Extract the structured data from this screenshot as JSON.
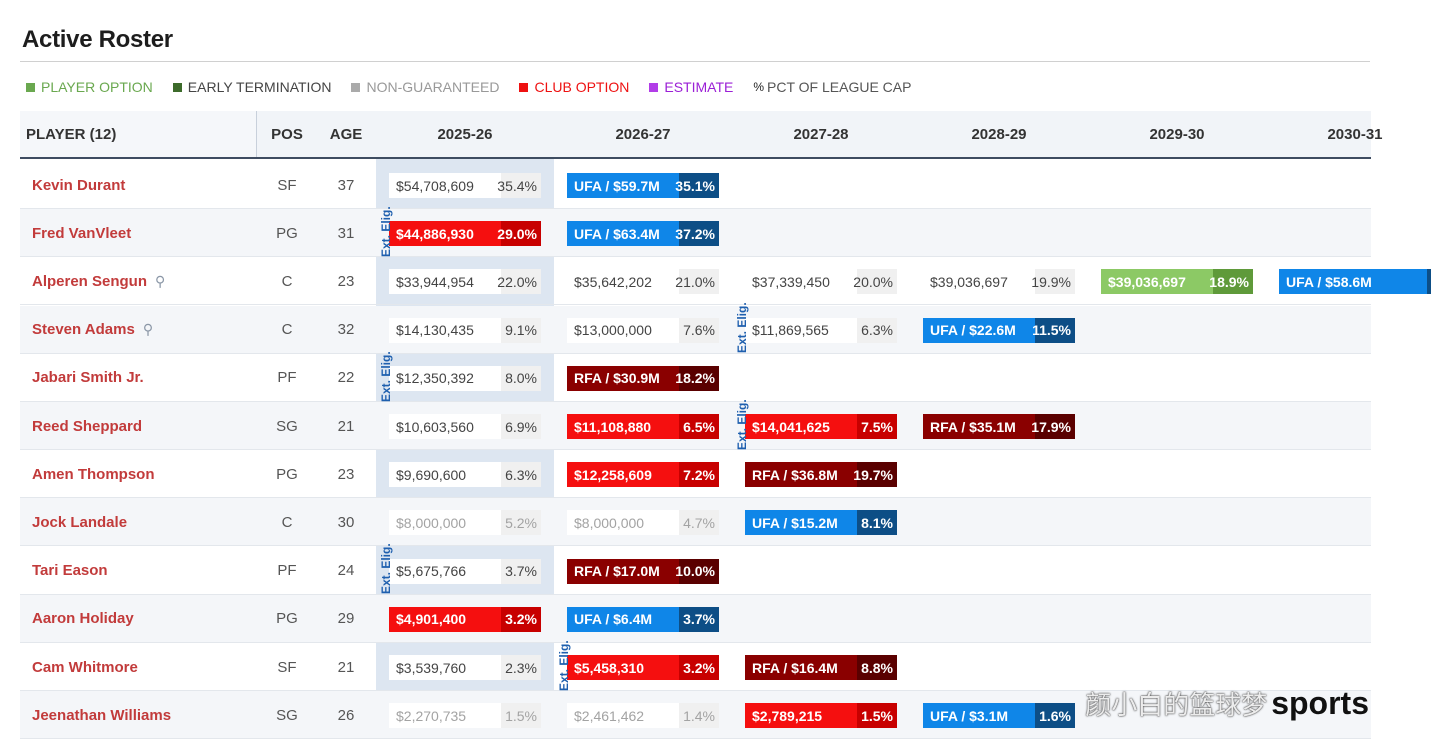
{
  "title": "Active Roster",
  "legend": [
    {
      "label": "PLAYER OPTION",
      "color": "#6aa84f",
      "text_color": "#6aa84f"
    },
    {
      "label": "EARLY TERMINATION",
      "color": "#3d6b2b",
      "text_color": "#444444"
    },
    {
      "label": "NON-GUARANTEED",
      "color": "#aaaaaa",
      "text_color": "#999999"
    },
    {
      "label": "CLUB OPTION",
      "color": "#ee1111",
      "text_color": "#ee1111"
    },
    {
      "label": "ESTIMATE",
      "color": "#b23de8",
      "text_color": "#9b1fd6"
    },
    {
      "label": "PCT OF LEAGUE CAP",
      "symbol": "%",
      "text_color": "#555555"
    }
  ],
  "headers": {
    "player": "PLAYER (12)",
    "pos": "POS",
    "age": "AGE",
    "seasons": [
      "2025-26",
      "2026-27",
      "2027-28",
      "2028-29",
      "2029-30",
      "2030-31"
    ]
  },
  "ext_label": "Ext. Elig.",
  "rows": [
    {
      "name": "Kevin Durant",
      "pos": "SF",
      "age": "37",
      "pin": false,
      "cells": [
        {
          "type": "g",
          "amount": "$54,708,609",
          "pct": "35.4%"
        },
        {
          "type": "ufa",
          "amount": "UFA / $59.7M",
          "pct": "35.1%"
        }
      ]
    },
    {
      "name": "Fred VanVleet",
      "pos": "PG",
      "age": "31",
      "pin": false,
      "cells": [
        {
          "type": "cl",
          "amount": "$44,886,930",
          "pct": "29.0%"
        },
        {
          "type": "ufa",
          "amount": "UFA / $63.4M",
          "pct": "37.2%"
        }
      ]
    },
    {
      "name": "Alperen Sengun",
      "pos": "C",
      "age": "23",
      "pin": true,
      "cells": [
        {
          "type": "g",
          "amount": "$33,944,954",
          "pct": "22.0%"
        },
        {
          "type": "g",
          "amount": "$35,642,202",
          "pct": "21.0%"
        },
        {
          "type": "g",
          "amount": "$37,339,450",
          "pct": "20.0%"
        },
        {
          "type": "g",
          "amount": "$39,036,697",
          "pct": "19.9%"
        },
        {
          "type": "po",
          "amount": "$39,036,697",
          "pct": "18.9%"
        },
        {
          "type": "ufa",
          "amount": "UFA / $58.6M",
          "pct": ""
        }
      ]
    },
    {
      "name": "Steven Adams",
      "pos": "C",
      "age": "32",
      "pin": true,
      "cells": [
        {
          "type": "g",
          "amount": "$14,130,435",
          "pct": "9.1%"
        },
        {
          "type": "g",
          "amount": "$13,000,000",
          "pct": "7.6%"
        },
        {
          "type": "g",
          "amount": "$11,869,565",
          "pct": "6.3%"
        },
        {
          "type": "ufa",
          "amount": "UFA / $22.6M",
          "pct": "11.5%"
        }
      ]
    },
    {
      "name": "Jabari Smith Jr.",
      "pos": "PF",
      "age": "22",
      "pin": false,
      "cells": [
        {
          "type": "g",
          "amount": "$12,350,392",
          "pct": "8.0%"
        },
        {
          "type": "rfa",
          "amount": "RFA / $30.9M",
          "pct": "18.2%"
        }
      ]
    },
    {
      "name": "Reed Sheppard",
      "pos": "SG",
      "age": "21",
      "pin": false,
      "cells": [
        {
          "type": "g",
          "amount": "$10,603,560",
          "pct": "6.9%"
        },
        {
          "type": "cl",
          "amount": "$11,108,880",
          "pct": "6.5%"
        },
        {
          "type": "cl",
          "amount": "$14,041,625",
          "pct": "7.5%"
        },
        {
          "type": "rfa",
          "amount": "RFA / $35.1M",
          "pct": "17.9%"
        }
      ]
    },
    {
      "name": "Amen Thompson",
      "pos": "PG",
      "age": "23",
      "pin": false,
      "cells": [
        {
          "type": "g",
          "amount": "$9,690,600",
          "pct": "6.3%"
        },
        {
          "type": "cl",
          "amount": "$12,258,609",
          "pct": "7.2%"
        },
        {
          "type": "rfa",
          "amount": "RFA / $36.8M",
          "pct": "19.7%"
        }
      ]
    },
    {
      "name": "Jock Landale",
      "pos": "C",
      "age": "30",
      "pin": false,
      "cells": [
        {
          "type": "ng",
          "amount": "$8,000,000",
          "pct": "5.2%"
        },
        {
          "type": "ng",
          "amount": "$8,000,000",
          "pct": "4.7%"
        },
        {
          "type": "ufa",
          "amount": "UFA / $15.2M",
          "pct": "8.1%"
        }
      ]
    },
    {
      "name": "Tari Eason",
      "pos": "PF",
      "age": "24",
      "pin": false,
      "cells": [
        {
          "type": "g",
          "amount": "$5,675,766",
          "pct": "3.7%"
        },
        {
          "type": "rfa",
          "amount": "RFA / $17.0M",
          "pct": "10.0%"
        }
      ]
    },
    {
      "name": "Aaron Holiday",
      "pos": "PG",
      "age": "29",
      "pin": false,
      "cells": [
        {
          "type": "cl",
          "amount": "$4,901,400",
          "pct": "3.2%"
        },
        {
          "type": "ufa",
          "amount": "UFA / $6.4M",
          "pct": "3.7%"
        }
      ]
    },
    {
      "name": "Cam Whitmore",
      "pos": "SF",
      "age": "21",
      "pin": false,
      "cells": [
        {
          "type": "g",
          "amount": "$3,539,760",
          "pct": "2.3%"
        },
        {
          "type": "cl",
          "amount": "$5,458,310",
          "pct": "3.2%"
        },
        {
          "type": "rfa",
          "amount": "RFA / $16.4M",
          "pct": "8.8%"
        }
      ]
    },
    {
      "name": "Jeenathan Williams",
      "pos": "SG",
      "age": "26",
      "pin": false,
      "cells": [
        {
          "type": "ng",
          "amount": "$2,270,735",
          "pct": "1.5%"
        },
        {
          "type": "ng",
          "amount": "$2,461,462",
          "pct": "1.4%"
        },
        {
          "type": "cl",
          "amount": "$2,789,215",
          "pct": "1.5%"
        },
        {
          "type": "ufa",
          "amount": "UFA / $3.1M",
          "pct": "1.6%"
        }
      ]
    }
  ],
  "watermark": {
    "chinese": "颜小白的篮球梦",
    "brand": "sports"
  }
}
